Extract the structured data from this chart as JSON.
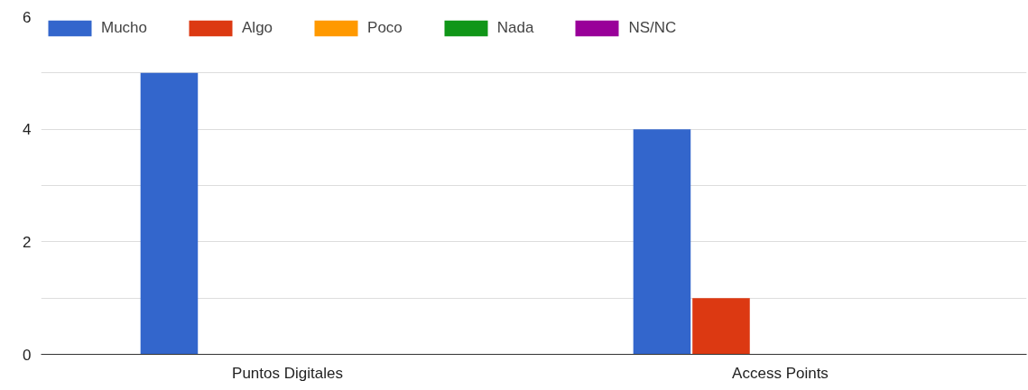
{
  "chart_data": {
    "type": "bar",
    "categories": [
      "Puntos Digitales",
      "Access Points"
    ],
    "series": [
      {
        "name": "Mucho",
        "color": "#3366cc",
        "values": [
          5,
          4
        ]
      },
      {
        "name": "Algo",
        "color": "#dc3912",
        "values": [
          0,
          1
        ]
      },
      {
        "name": "Poco",
        "color": "#ff9900",
        "values": [
          0,
          0
        ]
      },
      {
        "name": "Nada",
        "color": "#109618",
        "values": [
          0,
          0
        ]
      },
      {
        "name": "NS/NC",
        "color": "#990099",
        "values": [
          0,
          0
        ]
      }
    ],
    "ylim": [
      0,
      6
    ],
    "yticks": [
      0,
      {
        "value": 1,
        "label": null
      },
      2,
      {
        "value": 3,
        "label": null
      },
      4,
      {
        "value": 5,
        "label": null
      },
      6
    ],
    "grid": "y",
    "legend": "top left"
  }
}
